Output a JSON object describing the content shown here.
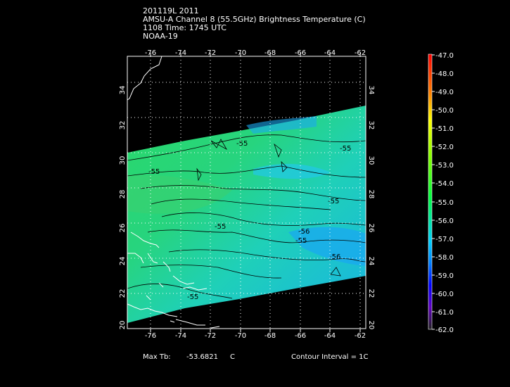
{
  "header": {
    "line1": "201119L 2011",
    "line2": "AMSU-A Channel 8 (55.5GHz) Brightness Temperature (C)",
    "line3": "1108 Time: 1745 UTC",
    "line4": "NOAA-19"
  },
  "map": {
    "lon_range": [
      -77.5,
      -61.5
    ],
    "lat_range": [
      20,
      35.5
    ],
    "lon_ticks": [
      "-76",
      "-74",
      "-72",
      "-70",
      "-68",
      "-66",
      "-64",
      "-62"
    ],
    "lat_ticks": [
      "20",
      "22",
      "24",
      "26",
      "28",
      "30",
      "32",
      "34"
    ],
    "grid": true,
    "contour_labels": [
      "-55",
      "-55",
      "-55",
      "-55",
      "-55",
      "-56",
      "-55",
      "-56",
      "-55"
    ]
  },
  "colorbar": {
    "ticks": [
      "-47.0",
      "-48.0",
      "-49.0",
      "-50.0",
      "-51.0",
      "-52.0",
      "-53.0",
      "-54.0",
      "-55.0",
      "-56.0",
      "-57.0",
      "-58.0",
      "-59.0",
      "-60.0",
      "-61.0",
      "-62.0"
    ]
  },
  "footer": {
    "max_label": "Max Tb:",
    "max_value": "-53.6821",
    "max_unit": "C",
    "contour_interval": "Contour Interval = 1C"
  }
}
